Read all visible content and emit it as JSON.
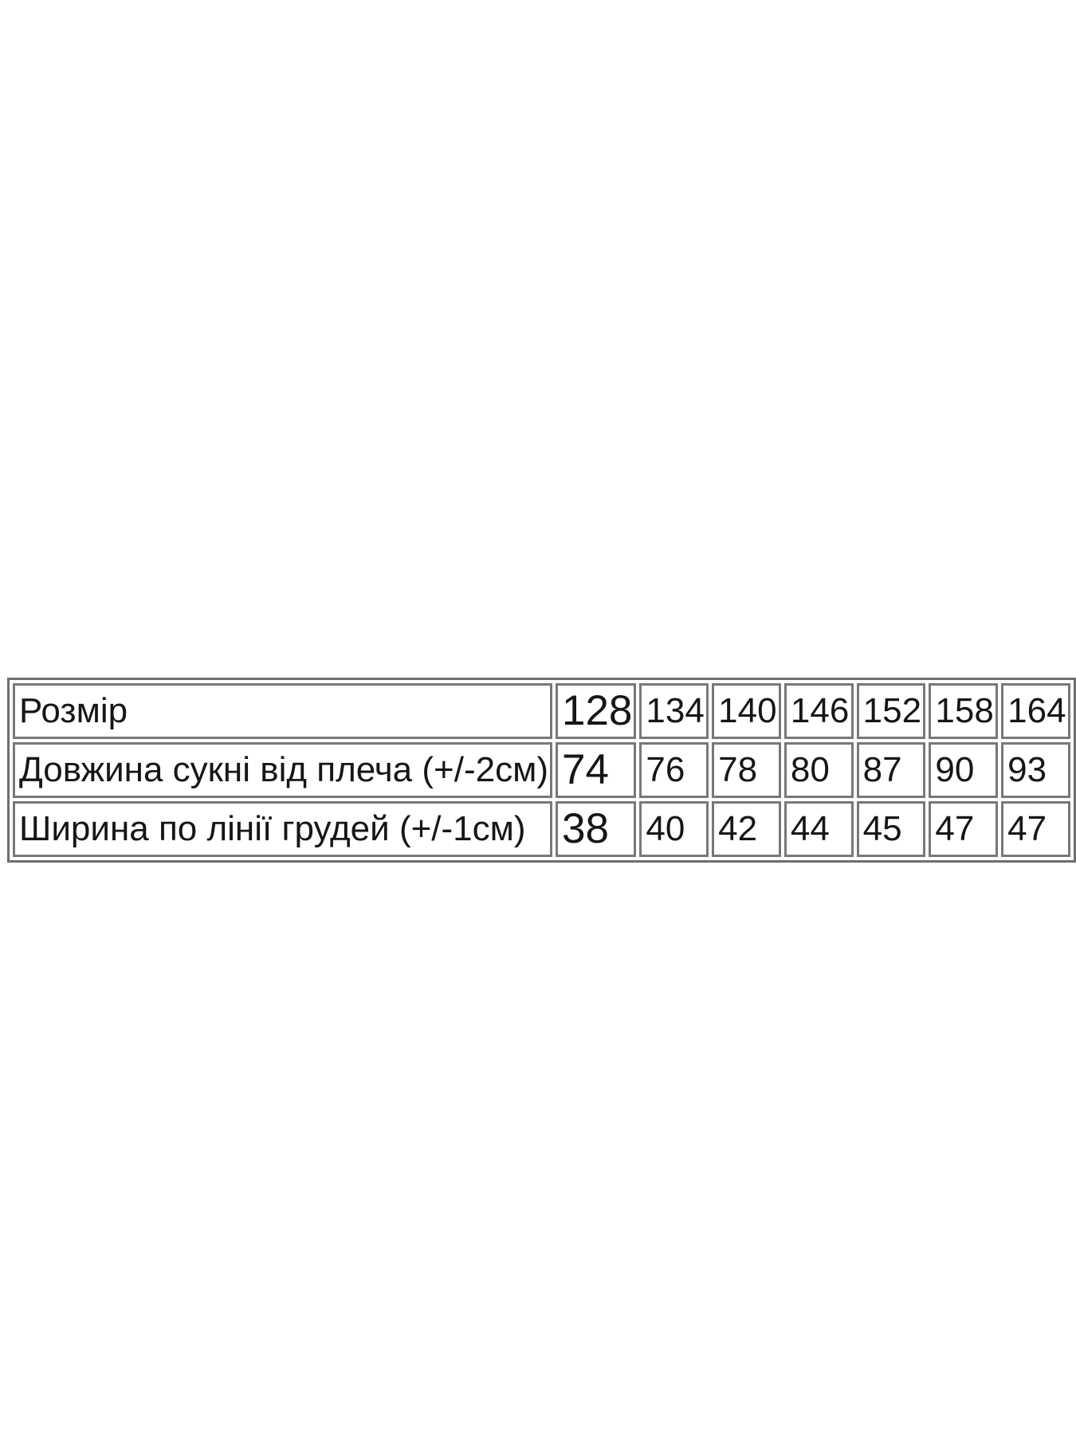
{
  "page": {
    "background_color": "#ffffff",
    "text_color": "#161616",
    "table_border_color": "#6e6e6e"
  },
  "size_table": {
    "header": {
      "label": "Розмір",
      "sizes": [
        "128",
        "134",
        "140",
        "146",
        "152",
        "158",
        "164"
      ]
    },
    "rows": [
      {
        "label": "Довжина сукні від плеча (+/-2см)",
        "values": [
          "74",
          "76",
          "78",
          "80",
          "87",
          "90",
          "93"
        ]
      },
      {
        "label": "Ширина по лінії грудей (+/-1см)",
        "values": [
          "38",
          "40",
          "42",
          "44",
          "45",
          "47",
          "47"
        ]
      }
    ]
  }
}
